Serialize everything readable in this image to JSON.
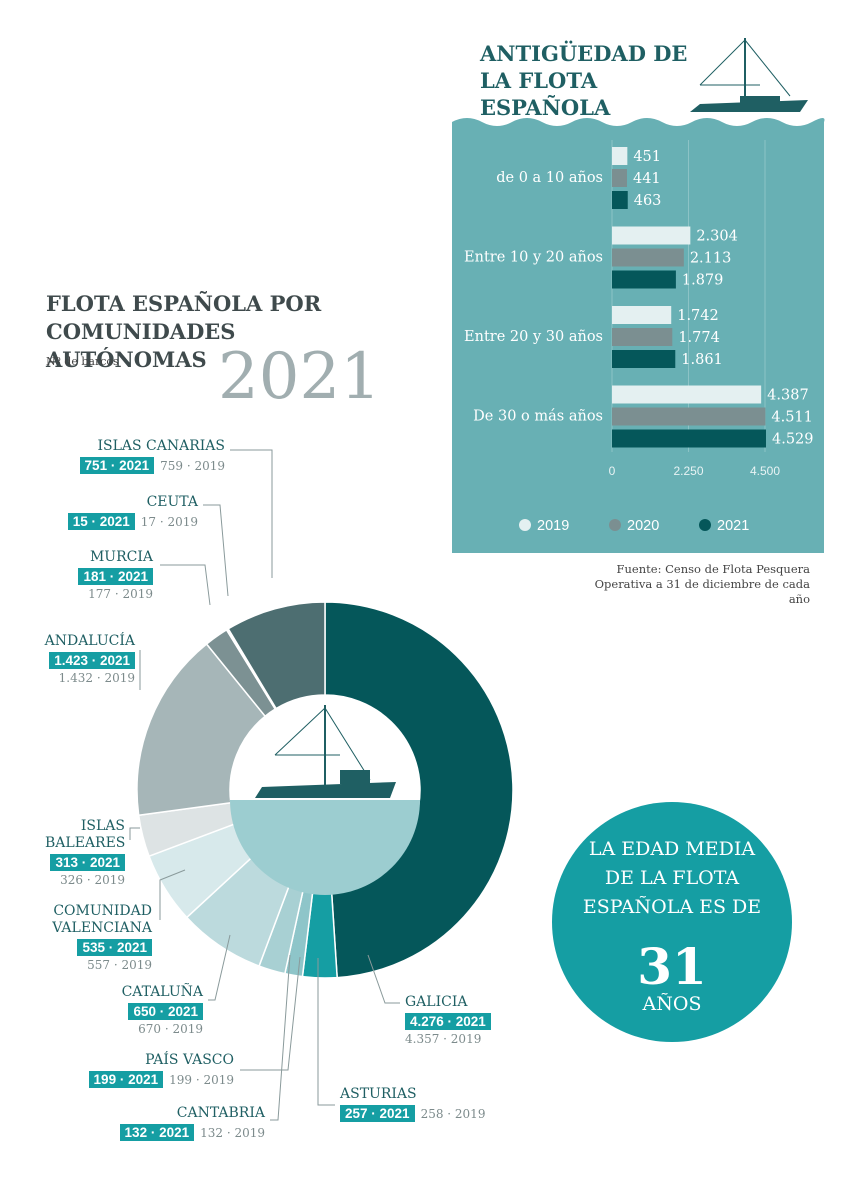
{
  "chart_data": [
    {
      "type": "hbar",
      "title": "ANTIGÜEDAD DE LA FLOTA ESPAÑOLA",
      "categories": [
        "de 0 a 10 años",
        "Entre 10 y 20 años",
        "Entre 20 y 30 años",
        "De 30 o más años"
      ],
      "series": [
        {
          "name": "2019",
          "color": "#e4f0f1",
          "values": [
            451,
            2304,
            1742,
            4387
          ],
          "value_labels": [
            "451",
            "2.304",
            "1.742",
            "4.387"
          ]
        },
        {
          "name": "2020",
          "color": "#7b8f91",
          "values": [
            441,
            2113,
            1774,
            4511
          ],
          "value_labels": [
            "441",
            "2.113",
            "1.774",
            "4.511"
          ]
        },
        {
          "name": "2021",
          "color": "#05575a",
          "values": [
            463,
            1879,
            1861,
            4529
          ],
          "value_labels": [
            "463",
            "1.879",
            "1.861",
            "4.529"
          ]
        }
      ],
      "xlim": [
        0,
        4500
      ],
      "xticks": [
        0,
        {
          "value": 2250,
          "label": "2.250"
        },
        {
          "value": 4500,
          "label": "4.500"
        }
      ],
      "grid": true,
      "legend": "bottom",
      "source": "Fuente: Censo de Flota Pesquera Operativa a 31 de diciembre de cada año"
    },
    {
      "type": "donut",
      "title": "FLOTA ESPAÑOLA POR COMUNIDADES AUTÓNOMAS",
      "subtitle": "Nº de barcos",
      "categories": [
        "GALICIA",
        "ASTURIAS",
        "CANTABRIA",
        "PAÍS VASCO",
        "CATALUÑA",
        "COMUNIDAD VALENCIANA",
        "ISLAS BALEARES",
        "ANDALUCÍA",
        "MURCIA",
        "CEUTA",
        "ISLAS CANARIAS"
      ],
      "colors": [
        "#05575a",
        "#159ea3",
        "#8ec5c9",
        "#a8d0d3",
        "#bcdadd",
        "#d7e9eb",
        "#dde3e4",
        "#a6b6b8",
        "#7c9193",
        "#ffffff",
        "#4d6e71"
      ],
      "series": [
        {
          "name": "2021",
          "values": [
            4276,
            257,
            132,
            199,
            650,
            535,
            313,
            1423,
            181,
            15,
            751
          ],
          "value_labels": [
            "4.276 · 2021",
            "257 · 2021",
            "132 · 2021",
            "199 · 2021",
            "650 · 2021",
            "535 · 2021",
            "313 · 2021",
            "1.423 · 2021",
            "181 · 2021",
            "15 · 2021",
            "751 · 2021"
          ]
        },
        {
          "name": "2019",
          "values": [
            4357,
            258,
            132,
            199,
            670,
            557,
            326,
            1432,
            177,
            17,
            759
          ],
          "value_labels": [
            "4.357 · 2019",
            "258 · 2019",
            "132 · 2019",
            "199 · 2019",
            "670 · 2019",
            "557 · 2019",
            "326 · 2019",
            "1.432 · 2019",
            "177 · 2019",
            "17 · 2019",
            "759 · 2019"
          ]
        }
      ]
    }
  ],
  "callout": {
    "text": "LA EDAD MEDIA DE LA FLOTA ESPAÑOLA ES DE",
    "value": 31,
    "unit": "AÑOS"
  }
}
